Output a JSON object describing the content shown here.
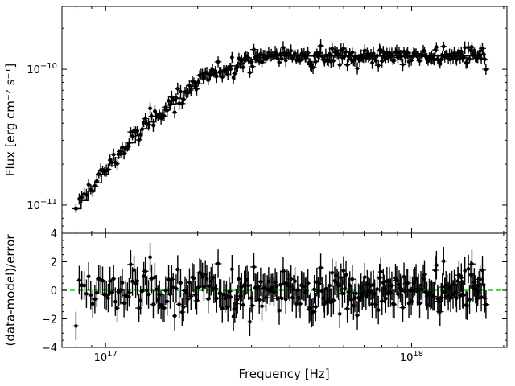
{
  "chart_data": [
    {
      "type": "scatter",
      "panel": "spectrum",
      "ylabel": "Flux [erg cm⁻² s⁻¹]",
      "xscale": "log",
      "yscale": "log",
      "xlim": [
        7.2e+16,
        2.05e+18
      ],
      "ylim": [
        6.2e-12,
        2.9e-10
      ],
      "x_ticks": [
        {
          "value": 1e+17,
          "label": "10^17"
        },
        {
          "value": 1e+18,
          "label": "10^18"
        }
      ],
      "y_ticks": [
        {
          "value": 1e-11,
          "label": "10^-11"
        },
        {
          "value": 1e-10,
          "label": "10^-10"
        }
      ],
      "series": [
        {
          "kind": "data-with-errorbars",
          "color": "#000000",
          "x_range": [
            8e+16,
            1.75e+18
          ],
          "y_start": 9.4e-12,
          "y_plateau": 1.25e-10,
          "y_end": 1e-10
        },
        {
          "kind": "model-step",
          "color": "#000000",
          "y_start": 1.4e-11,
          "y_plateau": 1.25e-10
        }
      ]
    },
    {
      "type": "scatter",
      "panel": "residuals",
      "xlabel": "Frequency [Hz]",
      "ylabel": "(data-model)/error",
      "xscale": "log",
      "xlim": [
        7.2e+16,
        2.05e+18
      ],
      "ylim": [
        -4,
        4
      ],
      "y_ticks": [
        {
          "value": -4,
          "label": "−4"
        },
        {
          "value": -2,
          "label": "−2"
        },
        {
          "value": 0,
          "label": "0"
        },
        {
          "value": 2,
          "label": "2"
        },
        {
          "value": 4,
          "label": "4"
        }
      ],
      "x_ticks": [
        {
          "value": 1e+17,
          "label": "10^17"
        },
        {
          "value": 1e+18,
          "label": "10^18"
        }
      ],
      "reference_line": {
        "y": 0,
        "color": "#00dd00",
        "style": "dashed"
      },
      "series": [
        {
          "kind": "residuals-with-errorbars",
          "color": "#000000",
          "first_y": -2.5,
          "last_y": -1.0
        }
      ]
    }
  ]
}
